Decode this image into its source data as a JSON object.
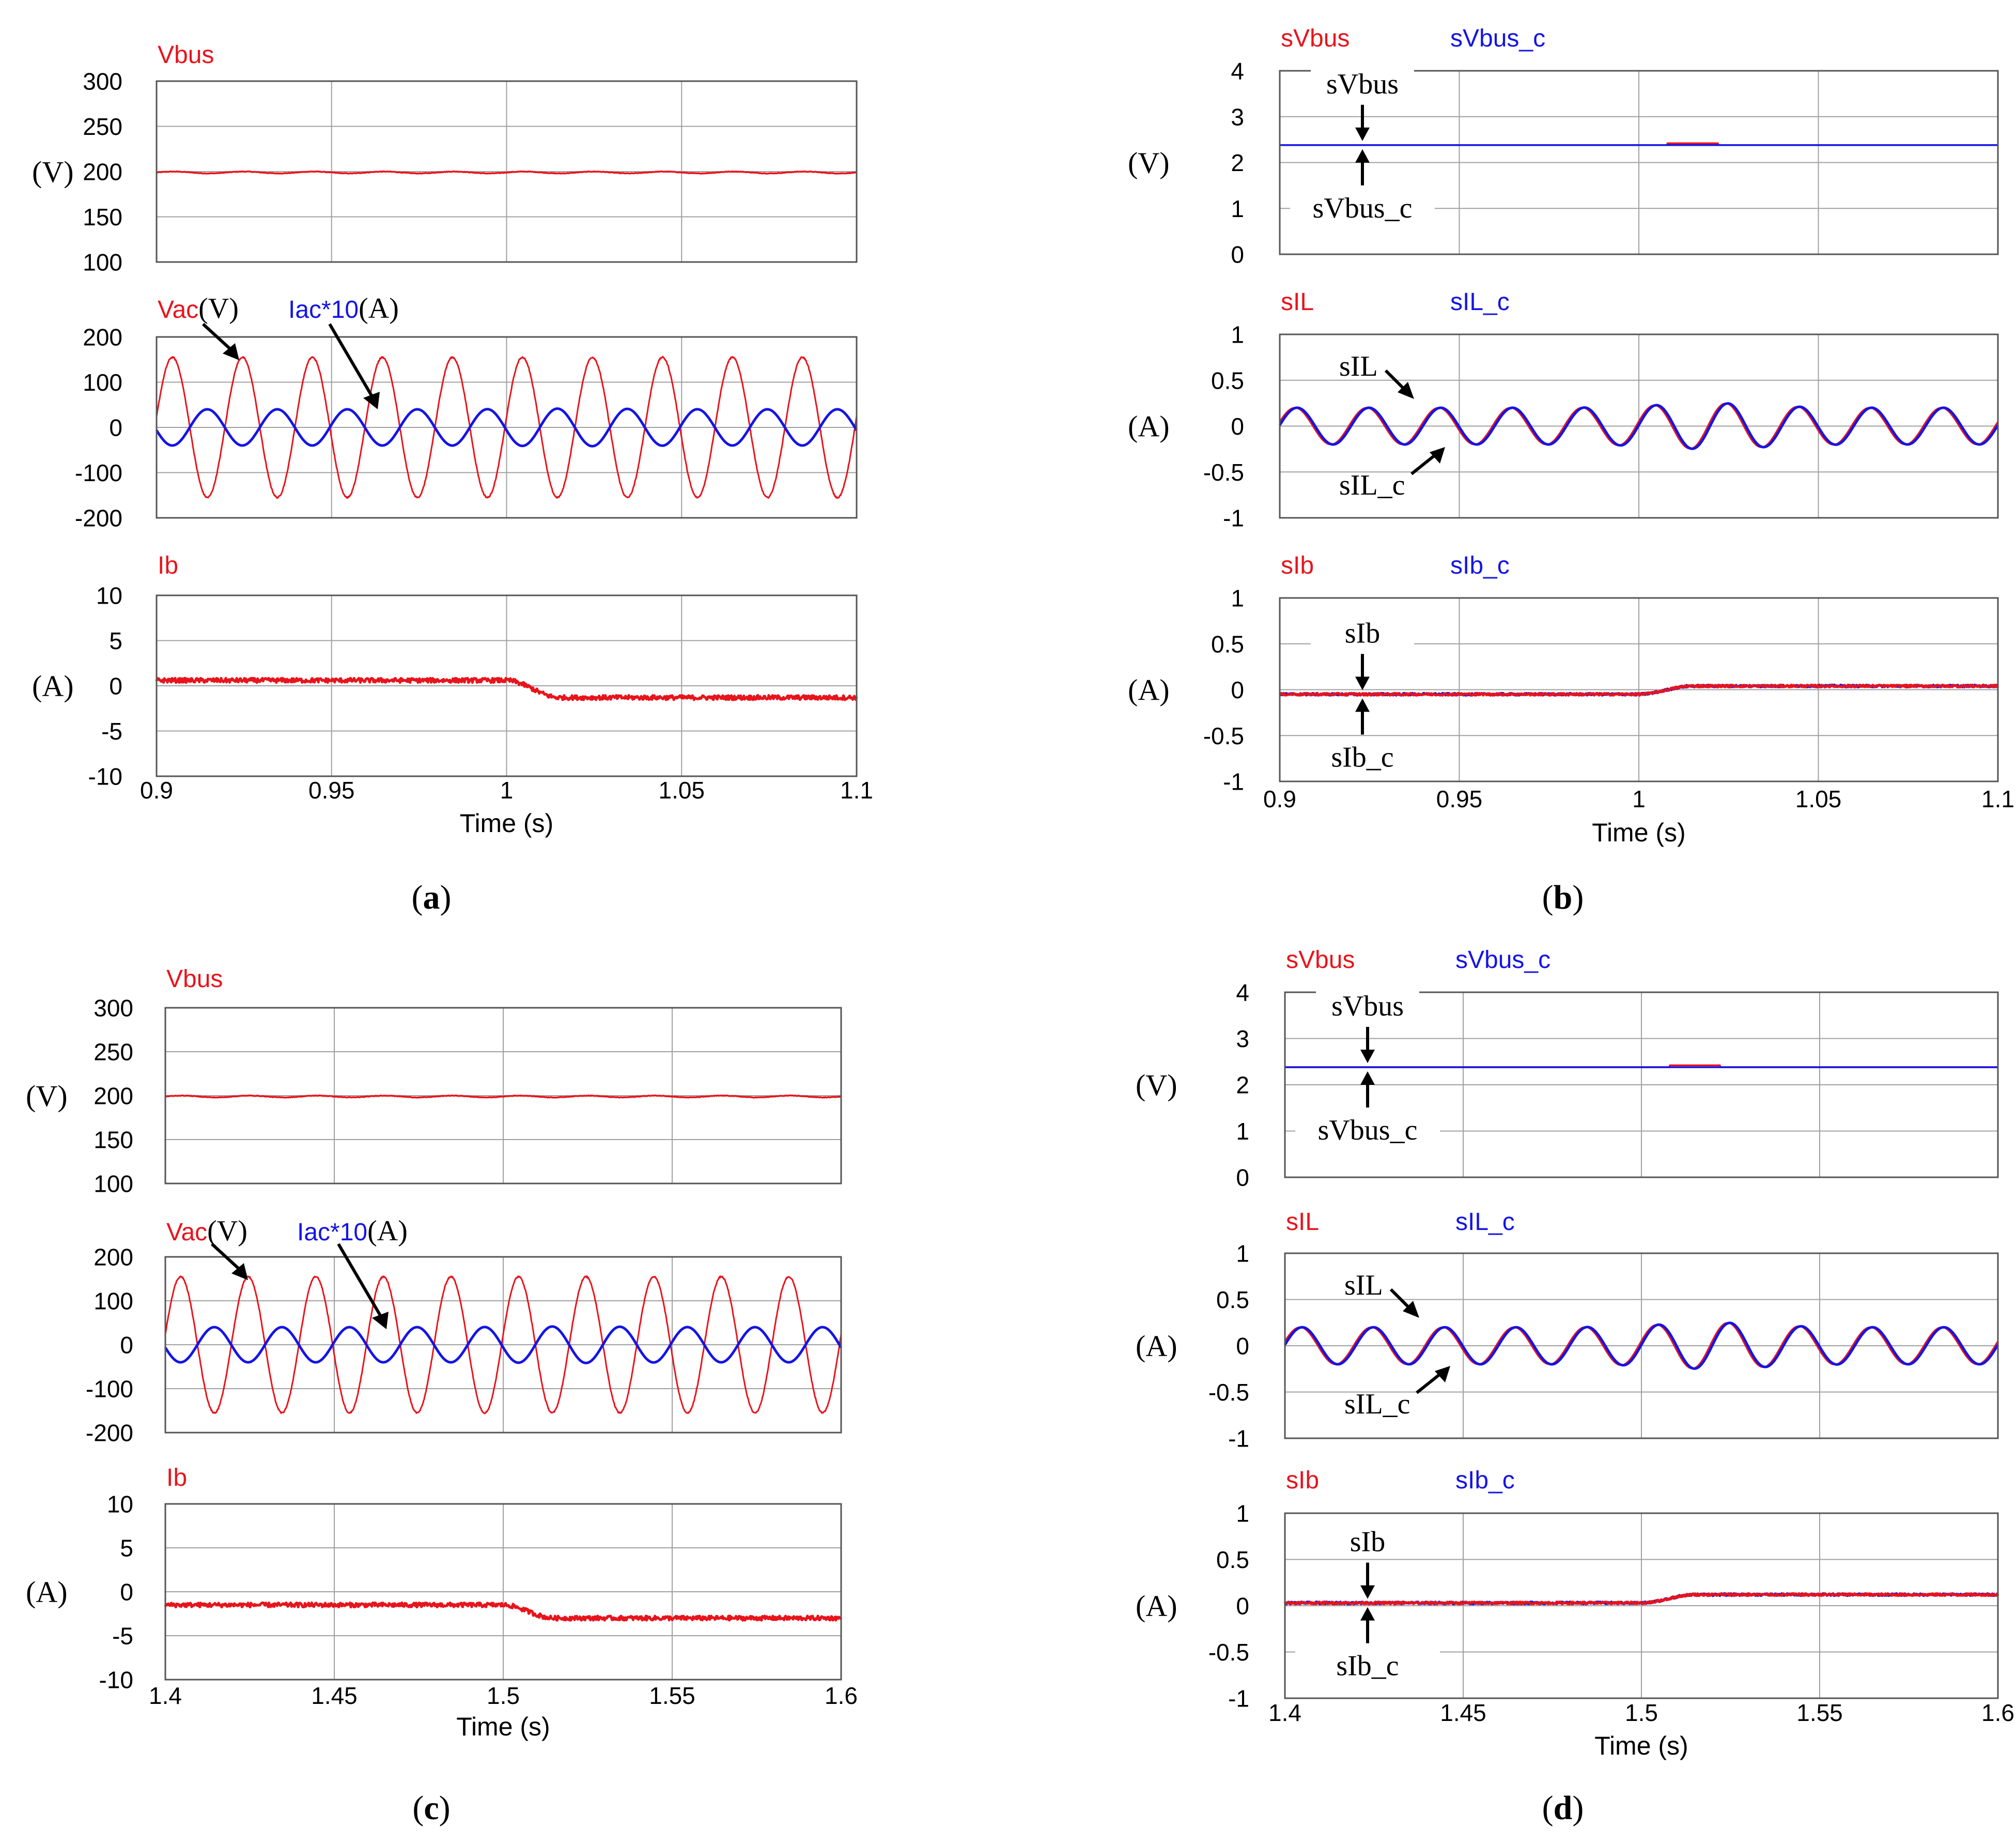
{
  "colors": {
    "red": "#e8141c",
    "blue": "#1414e6",
    "grid": "#a0a0a0",
    "frame": "#555555",
    "text": "#000000"
  },
  "chart_data": [
    {
      "id": "a",
      "type": "line",
      "caption_open": "(",
      "caption_letter": "a",
      "caption_close": ")",
      "time_label": "Time (s)",
      "x_ticks": [
        "0.9",
        "0.95",
        "1",
        "1.05",
        "1.1"
      ],
      "xlim": [
        0.9,
        1.1
      ],
      "panels": [
        {
          "series_labels": [
            {
              "text": "Vbus",
              "color": "red"
            }
          ],
          "annotations": [],
          "ylim": [
            100,
            300
          ],
          "y_ticks": [
            "300",
            "250",
            "200",
            "150",
            "100"
          ],
          "unit": "(V)",
          "series": [
            {
              "name": "Vbus",
              "color": "red",
              "kind": "const",
              "value": 199,
              "ripple": 1.0,
              "noise": 0.3
            }
          ]
        },
        {
          "series_labels": [
            {
              "text": "Vac",
              "color": "red",
              "unit": "(V)"
            },
            {
              "text": "Iac*10",
              "color": "blue",
              "unit": "(A)"
            }
          ],
          "annotations": [],
          "ylim": [
            -200,
            200
          ],
          "y_ticks": [
            "200",
            "100",
            "0",
            "-100",
            "-200"
          ],
          "unit": "",
          "series": [
            {
              "name": "Vac",
              "color": "red",
              "kind": "sine",
              "amp": 155,
              "freq": 50,
              "phase": 0.15,
              "noise": 1.5
            },
            {
              "name": "Iac*10",
              "color": "blue",
              "kind": "sine",
              "amp": 40,
              "freq": 50,
              "phase": 3.3,
              "amp_bump": [
                1.0,
                1.04,
                50
              ]
            }
          ]
        },
        {
          "series_labels": [
            {
              "text": "Ib",
              "color": "red"
            }
          ],
          "annotations": [],
          "ylim": [
            -10,
            10
          ],
          "y_ticks": [
            "10",
            "5",
            "0",
            "-5",
            "-10"
          ],
          "unit": "(A)",
          "series": [
            {
              "name": "Ib",
              "color": "red",
              "kind": "step",
              "before": 0.6,
              "after": -1.3,
              "t_step": 1.0,
              "rise": 0.015,
              "noise": 0.25
            }
          ]
        }
      ]
    },
    {
      "id": "b",
      "type": "line",
      "caption_open": "(",
      "caption_letter": "b",
      "caption_close": ")",
      "time_label": "Time (s)",
      "x_ticks": [
        "0.9",
        "0.95",
        "1",
        "1.05",
        "1.1"
      ],
      "xlim": [
        0.9,
        1.1
      ],
      "panels": [
        {
          "series_labels": [
            {
              "text": "sVbus",
              "color": "red"
            },
            {
              "text": "sVbus_c",
              "color": "blue"
            }
          ],
          "annotations": [
            "sVbus",
            "sVbus_c"
          ],
          "ylim": [
            0,
            4
          ],
          "y_ticks": [
            "4",
            "3",
            "2",
            "1",
            "0"
          ],
          "unit": "(V)",
          "series": [
            {
              "name": "sVbus",
              "color": "red",
              "kind": "const",
              "value": 2.38,
              "bump": [
                1.008,
                1.022,
                0.04
              ]
            },
            {
              "name": "sVbus_c",
              "color": "blue",
              "kind": "const",
              "value": 2.38
            }
          ]
        },
        {
          "series_labels": [
            {
              "text": "sIL",
              "color": "red"
            },
            {
              "text": "sIL_c",
              "color": "blue"
            }
          ],
          "annotations": [
            "sIL",
            "sIL_c"
          ],
          "ylim": [
            -1,
            1
          ],
          "y_ticks": [
            "1",
            "0.5",
            "0",
            "-0.5",
            "-1"
          ],
          "unit": "(A)",
          "series": [
            {
              "name": "sIL",
              "color": "red",
              "kind": "sine",
              "amp": 0.2,
              "freq": 50,
              "phase": 0.25,
              "amp_bump": [
                1.0,
                1.25,
                50
              ]
            },
            {
              "name": "sIL_c",
              "color": "blue",
              "kind": "sine",
              "amp": 0.2,
              "freq": 50,
              "phase": 0.05,
              "amp_bump": [
                1.0,
                1.25,
                50
              ]
            }
          ]
        },
        {
          "series_labels": [
            {
              "text": "sIb",
              "color": "red"
            },
            {
              "text": "sIb_c",
              "color": "blue"
            }
          ],
          "annotations": [
            "sIb",
            "sIb_c"
          ],
          "ylim": [
            -1,
            1
          ],
          "y_ticks": [
            "1",
            "0.5",
            "0",
            "-0.5",
            "-1"
          ],
          "unit": "(A)",
          "series": [
            {
              "name": "sIb_c",
              "color": "blue",
              "kind": "step",
              "before": -0.05,
              "after": 0.04,
              "t_step": 1.0,
              "rise": 0.015,
              "noise": 0.012
            },
            {
              "name": "sIb",
              "color": "red",
              "kind": "step",
              "before": -0.05,
              "after": 0.04,
              "t_step": 1.0,
              "rise": 0.015,
              "noise": 0.012
            }
          ]
        }
      ]
    },
    {
      "id": "c",
      "type": "line",
      "caption_open": "(",
      "caption_letter": "c",
      "caption_close": ")",
      "time_label": "Time (s)",
      "x_ticks": [
        "1.4",
        "1.45",
        "1.5",
        "1.55",
        "1.6"
      ],
      "xlim": [
        1.4,
        1.6
      ],
      "panels": [
        {
          "series_labels": [
            {
              "text": "Vbus",
              "color": "red"
            }
          ],
          "annotations": [],
          "ylim": [
            100,
            300
          ],
          "y_ticks": [
            "300",
            "250",
            "200",
            "150",
            "100"
          ],
          "unit": "(V)",
          "series": [
            {
              "name": "Vbus",
              "color": "red",
              "kind": "const",
              "value": 199,
              "ripple": 1.0,
              "noise": 0.3
            }
          ]
        },
        {
          "series_labels": [
            {
              "text": "Vac",
              "color": "red",
              "unit": "(V)"
            },
            {
              "text": "Iac*10",
              "color": "blue",
              "unit": "(A)"
            }
          ],
          "annotations": [],
          "ylim": [
            -200,
            200
          ],
          "y_ticks": [
            "200",
            "100",
            "0",
            "-100",
            "-200"
          ],
          "unit": "",
          "series": [
            {
              "name": "Vac",
              "color": "red",
              "kind": "sine",
              "amp": 155,
              "freq": 50,
              "phase": 0.15,
              "noise": 1.5
            },
            {
              "name": "Iac*10",
              "color": "blue",
              "kind": "sine",
              "amp": 40,
              "freq": 50,
              "phase": 3.3,
              "amp_bump": [
                1.5,
                1.04,
                50
              ]
            }
          ]
        },
        {
          "series_labels": [
            {
              "text": "Ib",
              "color": "red"
            }
          ],
          "annotations": [],
          "ylim": [
            -10,
            10
          ],
          "y_ticks": [
            "10",
            "5",
            "0",
            "-5",
            "-10"
          ],
          "unit": "(A)",
          "series": [
            {
              "name": "Ib",
              "color": "red",
              "kind": "step",
              "before": -1.5,
              "after": -3.0,
              "t_step": 1.5,
              "rise": 0.015,
              "noise": 0.25
            }
          ]
        }
      ]
    },
    {
      "id": "d",
      "type": "line",
      "caption_open": "(",
      "caption_letter": "d",
      "caption_close": ")",
      "time_label": "Time (s)",
      "x_ticks": [
        "1.4",
        "1.45",
        "1.5",
        "1.55",
        "1.6"
      ],
      "xlim": [
        1.4,
        1.6
      ],
      "panels": [
        {
          "series_labels": [
            {
              "text": "sVbus",
              "color": "red"
            },
            {
              "text": "sVbus_c",
              "color": "blue"
            }
          ],
          "annotations": [
            "sVbus",
            "sVbus_c"
          ],
          "ylim": [
            0,
            4
          ],
          "y_ticks": [
            "4",
            "3",
            "2",
            "1",
            "0"
          ],
          "unit": "(V)",
          "series": [
            {
              "name": "sVbus",
              "color": "red",
              "kind": "const",
              "value": 2.38,
              "bump": [
                1.508,
                1.522,
                0.04
              ]
            },
            {
              "name": "sVbus_c",
              "color": "blue",
              "kind": "const",
              "value": 2.38
            }
          ]
        },
        {
          "series_labels": [
            {
              "text": "sIL",
              "color": "red"
            },
            {
              "text": "sIL_c",
              "color": "blue"
            }
          ],
          "annotations": [
            "sIL",
            "sIL_c"
          ],
          "ylim": [
            -1,
            1
          ],
          "y_ticks": [
            "1",
            "0.5",
            "0",
            "-0.5",
            "-1"
          ],
          "unit": "(A)",
          "series": [
            {
              "name": "sIL",
              "color": "red",
              "kind": "sine",
              "amp": 0.2,
              "freq": 50,
              "phase": 0.25,
              "amp_bump": [
                1.5,
                1.25,
                50
              ]
            },
            {
              "name": "sIL_c",
              "color": "blue",
              "kind": "sine",
              "amp": 0.2,
              "freq": 50,
              "phase": 0.05,
              "amp_bump": [
                1.5,
                1.25,
                50
              ]
            }
          ]
        },
        {
          "series_labels": [
            {
              "text": "sIb",
              "color": "red"
            },
            {
              "text": "sIb_c",
              "color": "blue"
            }
          ],
          "annotations": [
            "sIb",
            "sIb_c"
          ],
          "ylim": [
            -1,
            1
          ],
          "y_ticks": [
            "1",
            "0.5",
            "0",
            "-0.5",
            "-1"
          ],
          "unit": "(A)",
          "series": [
            {
              "name": "sIb_c",
              "color": "blue",
              "kind": "step",
              "before": 0.03,
              "after": 0.12,
              "t_step": 1.5,
              "rise": 0.015,
              "noise": 0.012
            },
            {
              "name": "sIb",
              "color": "red",
              "kind": "step",
              "before": 0.03,
              "after": 0.12,
              "t_step": 1.5,
              "rise": 0.015,
              "noise": 0.012
            }
          ]
        }
      ]
    }
  ]
}
